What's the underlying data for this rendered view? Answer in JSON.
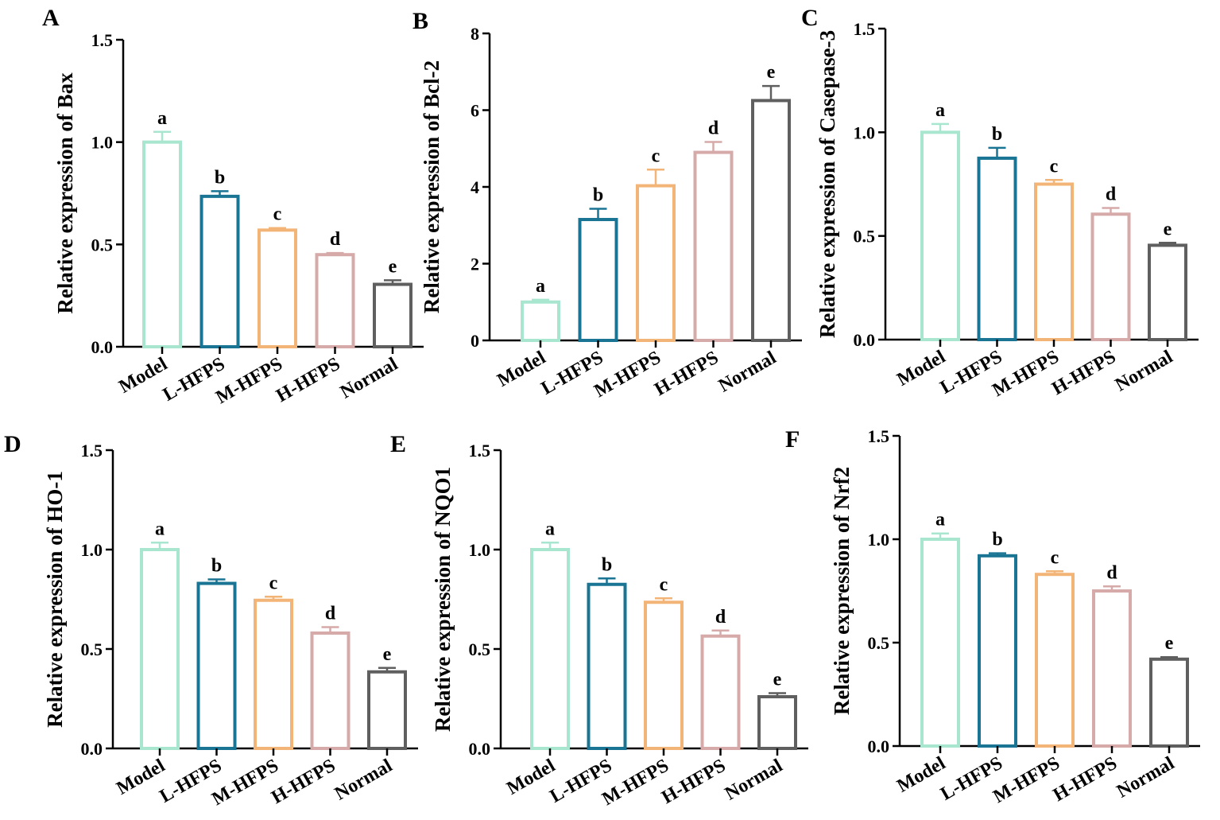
{
  "colors": {
    "Model": "#a8e6d0",
    "L-HFPS": "#1a7493",
    "M-HFPS": "#f3b477",
    "H-HFPS": "#d6aaa9",
    "Normal": "#5f5f5f",
    "axis": "#000000"
  },
  "chart_data": [
    {
      "panel": "A",
      "type": "bar",
      "categories": [
        "Model",
        "L-HFPS",
        "M-HFPS",
        "H-HFPS",
        "Normal"
      ],
      "values": [
        1.0,
        0.735,
        0.57,
        0.45,
        0.305
      ],
      "errors": [
        0.05,
        0.025,
        0.01,
        0.008,
        0.02
      ],
      "sig": [
        "a",
        "b",
        "c",
        "d",
        "e"
      ],
      "ylabel": "Relative expression of Bax",
      "ylim": [
        0,
        1.5
      ],
      "yticks": [
        "0.0",
        "0.5",
        "1.0",
        "1.5"
      ]
    },
    {
      "panel": "B",
      "type": "bar",
      "categories": [
        "Model",
        "L-HFPS",
        "M-HFPS",
        "H-HFPS",
        "Normal"
      ],
      "values": [
        1.0,
        3.15,
        4.03,
        4.9,
        6.25
      ],
      "errors": [
        0.06,
        0.28,
        0.42,
        0.27,
        0.38
      ],
      "sig": [
        "a",
        "b",
        "c",
        "d",
        "e"
      ],
      "ylabel": "Relative expression of Bcl-2",
      "ylim": [
        0,
        8
      ],
      "yticks": [
        "0",
        "2",
        "4",
        "6",
        "8"
      ]
    },
    {
      "panel": "C",
      "type": "bar",
      "categories": [
        "Model",
        "L-HFPS",
        "M-HFPS",
        "H-HFPS",
        "Normal"
      ],
      "values": [
        1.0,
        0.875,
        0.75,
        0.605,
        0.455
      ],
      "errors": [
        0.04,
        0.05,
        0.02,
        0.03,
        0.012
      ],
      "sig": [
        "a",
        "b",
        "c",
        "d",
        "e"
      ],
      "ylabel": "Relative expression of Casepase-3",
      "ylim": [
        0,
        1.5
      ],
      "yticks": [
        "0.0",
        "0.5",
        "1.0",
        "1.5"
      ]
    },
    {
      "panel": "D",
      "type": "bar",
      "categories": [
        "Model",
        "L-HFPS",
        "M-HFPS",
        "H-HFPS",
        "Normal"
      ],
      "values": [
        1.0,
        0.83,
        0.745,
        0.58,
        0.385
      ],
      "errors": [
        0.035,
        0.02,
        0.018,
        0.03,
        0.02
      ],
      "sig": [
        "a",
        "b",
        "c",
        "d",
        "e"
      ],
      "ylabel": "Relative expression of HO-1",
      "ylim": [
        0,
        1.5
      ],
      "yticks": [
        "0.0",
        "0.5",
        "1.0",
        "1.5"
      ]
    },
    {
      "panel": "E",
      "type": "bar",
      "categories": [
        "Model",
        "L-HFPS",
        "M-HFPS",
        "H-HFPS",
        "Normal"
      ],
      "values": [
        1.0,
        0.825,
        0.735,
        0.565,
        0.26
      ],
      "errors": [
        0.035,
        0.03,
        0.02,
        0.028,
        0.018
      ],
      "sig": [
        "a",
        "b",
        "c",
        "d",
        "e"
      ],
      "ylabel": "Relative expression of NQO1",
      "ylim": [
        0,
        1.5
      ],
      "yticks": [
        "0.0",
        "0.5",
        "1.0",
        "1.5"
      ]
    },
    {
      "panel": "F",
      "type": "bar",
      "categories": [
        "Model",
        "L-HFPS",
        "M-HFPS",
        "H-HFPS",
        "Normal"
      ],
      "values": [
        1.0,
        0.92,
        0.83,
        0.75,
        0.42
      ],
      "errors": [
        0.028,
        0.012,
        0.015,
        0.022,
        0.01
      ],
      "sig": [
        "a",
        "b",
        "c",
        "d",
        "e"
      ],
      "ylabel": "Relative expression of Nrf2",
      "ylim": [
        0,
        1.5
      ],
      "yticks": [
        "0.0",
        "0.5",
        "1.0",
        "1.5"
      ]
    }
  ]
}
